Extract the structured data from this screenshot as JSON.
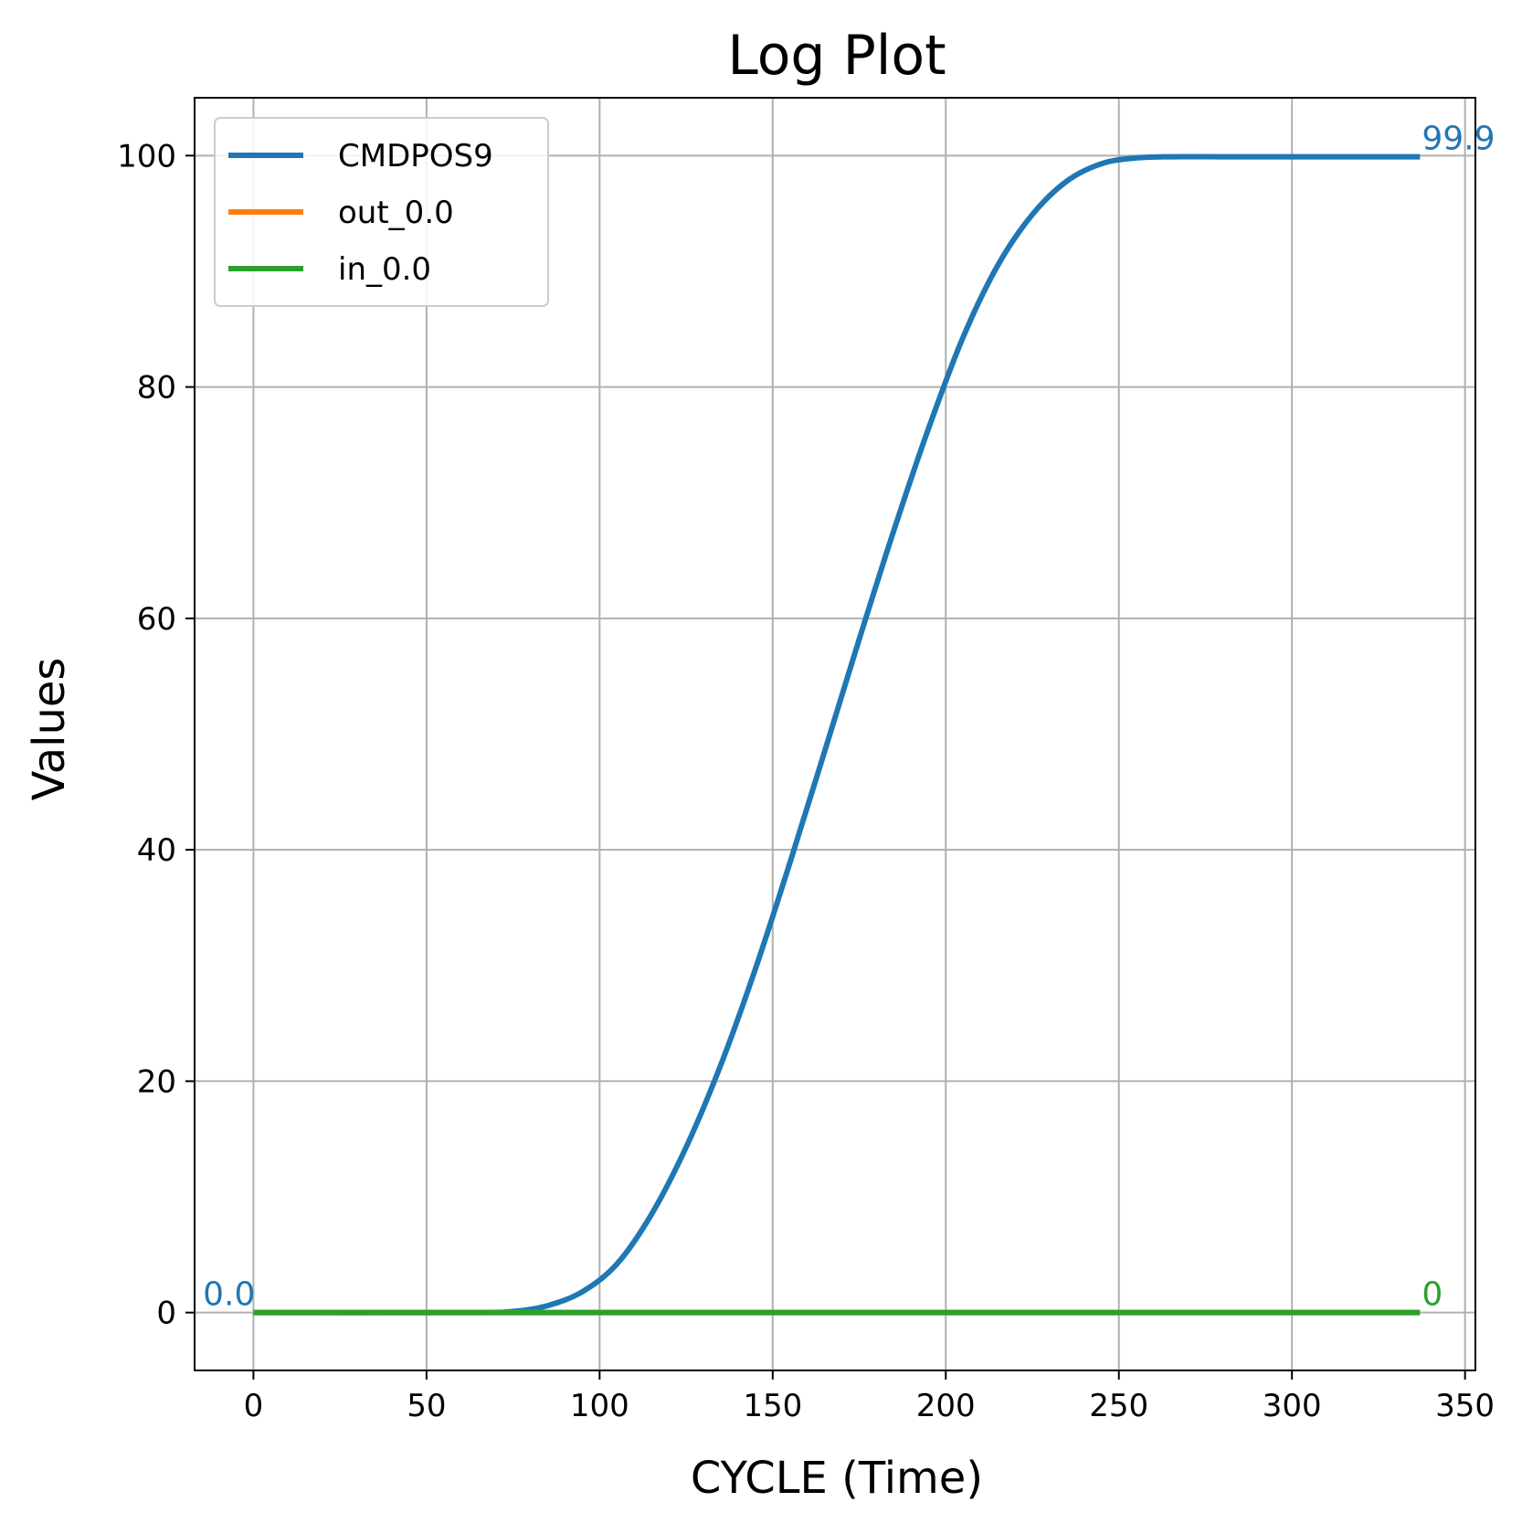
{
  "chart_data": {
    "type": "line",
    "title": "Log Plot",
    "xlabel": "CYCLE (Time)",
    "ylabel": "Values",
    "xlim": [
      -17,
      353
    ],
    "ylim": [
      -5,
      105
    ],
    "xticks": [
      0,
      50,
      100,
      150,
      200,
      250,
      300,
      350
    ],
    "yticks": [
      0,
      20,
      40,
      60,
      80,
      100
    ],
    "grid": true,
    "legend_position": "upper-left",
    "series": [
      {
        "name": "CMDPOS9",
        "color": "#1f77b4",
        "x": [
          0,
          60,
          75,
          85,
          95,
          105,
          115,
          125,
          135,
          145,
          155,
          165,
          175,
          185,
          195,
          205,
          215,
          225,
          235,
          245,
          255,
          265,
          280,
          300,
          320,
          337
        ],
        "y": [
          0,
          0,
          0.1,
          0.6,
          1.8,
          4.2,
          8.5,
          14.3,
          21.4,
          29.7,
          38.9,
          48.5,
          58.2,
          67.6,
          76.4,
          84.3,
          90.5,
          94.9,
          97.8,
          99.3,
          99.8,
          99.9,
          99.9,
          99.9,
          99.9,
          99.9
        ],
        "start_label": "0.0",
        "end_label": "99.9"
      },
      {
        "name": "out_0.0",
        "color": "#ff7f0e",
        "x": [
          0,
          337
        ],
        "y": [
          0,
          0
        ]
      },
      {
        "name": "in_0.0",
        "color": "#2ca02c",
        "x": [
          0,
          337
        ],
        "y": [
          0,
          0
        ],
        "end_label": "0"
      }
    ]
  }
}
